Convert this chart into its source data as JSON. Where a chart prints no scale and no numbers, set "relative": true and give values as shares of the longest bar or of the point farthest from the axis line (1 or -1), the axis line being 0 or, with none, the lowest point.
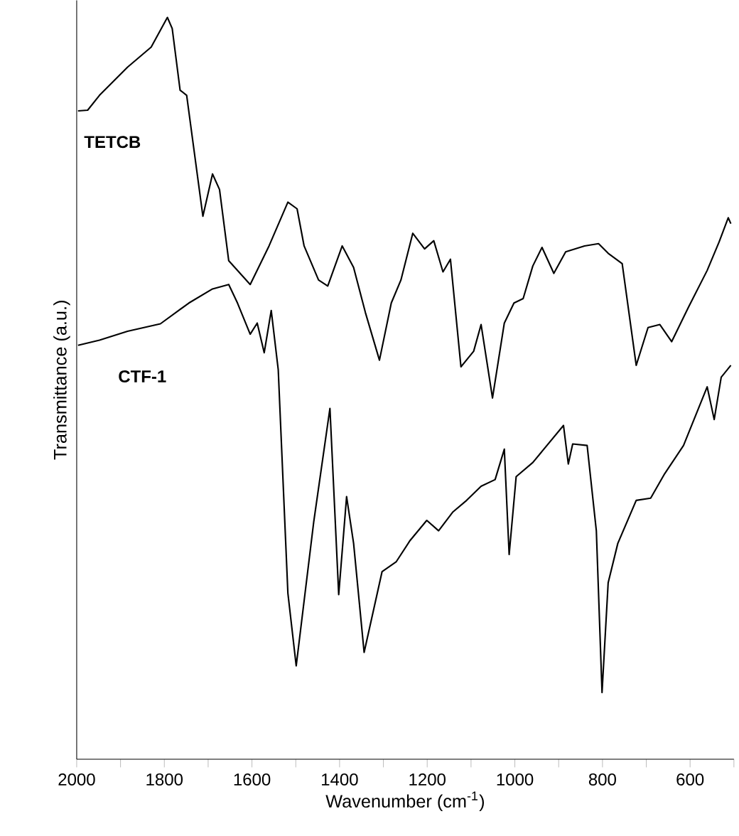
{
  "chart_data": {
    "type": "line",
    "relative": true,
    "xlabel": "Wavenumber (cm$^{-1}$)",
    "ylabel": "Transmittance (a.u.)",
    "xlim": [
      2000,
      500
    ],
    "xticks": [
      2000,
      {
        "value": 1900,
        "label": null
      },
      1800,
      {
        "value": 1700,
        "label": null
      },
      1600,
      {
        "value": 1500,
        "label": null
      },
      1400,
      {
        "value": 1300,
        "label": null
      },
      1200,
      {
        "value": 1100,
        "label": null
      },
      1000,
      {
        "value": 900,
        "label": null
      },
      800,
      {
        "value": 700,
        "label": null
      },
      600,
      {
        "value": 500,
        "label": null
      }
    ],
    "legend": false,
    "grid": false,
    "marker": "none",
    "line_style": "solid",
    "series": [
      {
        "name": "TETCB",
        "color": "#000000",
        "x": [
          1997,
          1975,
          1948,
          1884,
          1830,
          1793,
          1782,
          1764,
          1749,
          1712,
          1690,
          1674,
          1653,
          1604,
          1561,
          1518,
          1497,
          1481,
          1448,
          1427,
          1394,
          1368,
          1341,
          1309,
          1282,
          1260,
          1233,
          1206,
          1185,
          1164,
          1147,
          1123,
          1094,
          1077,
          1051,
          1024,
          1002,
          981,
          959,
          938,
          911,
          884,
          841,
          809,
          787,
          755,
          723,
          696,
          669,
          642,
          604,
          561,
          534,
          513,
          507
        ],
        "values": [
          0.874,
          0.875,
          0.895,
          0.933,
          0.96,
          1.0,
          0.985,
          0.902,
          0.895,
          0.732,
          0.789,
          0.768,
          0.672,
          0.64,
          0.692,
          0.751,
          0.742,
          0.692,
          0.646,
          0.638,
          0.692,
          0.663,
          0.602,
          0.538,
          0.615,
          0.646,
          0.709,
          0.688,
          0.699,
          0.657,
          0.674,
          0.529,
          0.55,
          0.586,
          0.487,
          0.588,
          0.615,
          0.621,
          0.665,
          0.69,
          0.655,
          0.684,
          0.692,
          0.695,
          0.682,
          0.668,
          0.531,
          0.582,
          0.586,
          0.563,
          0.609,
          0.659,
          0.697,
          0.73,
          0.722
        ]
      },
      {
        "name": "CTF-1",
        "color": "#000000",
        "x": [
          1997,
          1948,
          1884,
          1809,
          1744,
          1690,
          1653,
          1633,
          1604,
          1588,
          1572,
          1556,
          1540,
          1518,
          1499,
          1459,
          1422,
          1402,
          1384,
          1368,
          1344,
          1303,
          1271,
          1239,
          1201,
          1174,
          1142,
          1110,
          1077,
          1045,
          1024,
          1013,
          997,
          959,
          889,
          878,
          868,
          835,
          814,
          801,
          787,
          765,
          723,
          690,
          658,
          615,
          561,
          545,
          529,
          507
        ],
        "values": [
          0.558,
          0.565,
          0.577,
          0.587,
          0.615,
          0.634,
          0.64,
          0.615,
          0.573,
          0.588,
          0.548,
          0.605,
          0.525,
          0.224,
          0.126,
          0.32,
          0.473,
          0.222,
          0.354,
          0.291,
          0.144,
          0.253,
          0.266,
          0.295,
          0.322,
          0.308,
          0.333,
          0.349,
          0.368,
          0.377,
          0.418,
          0.276,
          0.381,
          0.4,
          0.45,
          0.398,
          0.425,
          0.423,
          0.308,
          0.09,
          0.238,
          0.291,
          0.349,
          0.352,
          0.385,
          0.423,
          0.502,
          0.458,
          0.515,
          0.531
        ]
      }
    ]
  }
}
